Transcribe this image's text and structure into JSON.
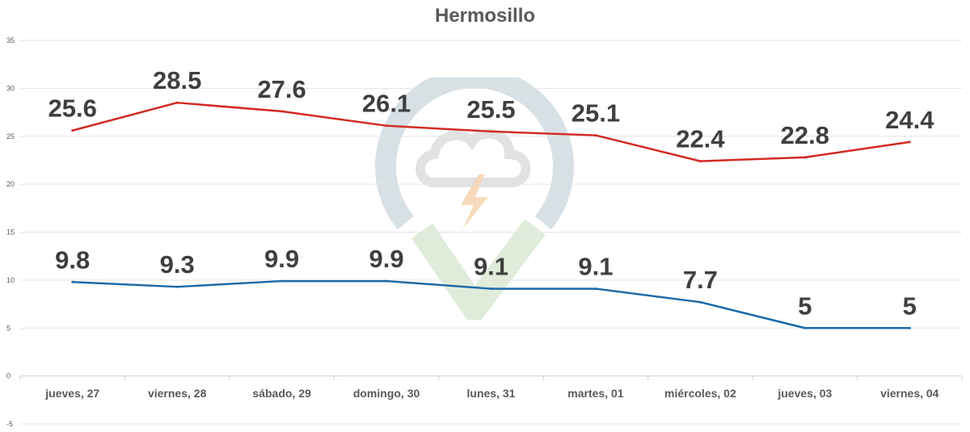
{
  "chart_data": {
    "type": "line",
    "title": "Hermosillo",
    "categories": [
      "jueves, 27",
      "viernes, 28",
      "sábado, 29",
      "domingo, 30",
      "lunes, 31",
      "martes, 01",
      "miércoles, 02",
      "jueves, 03",
      "viernes, 04"
    ],
    "series": [
      {
        "values": [
          25.6,
          28.5,
          27.6,
          26.1,
          25.5,
          25.1,
          22.4,
          22.8,
          24.4
        ],
        "color": "#d42a22"
      },
      {
        "values": [
          9.8,
          9.3,
          9.9,
          9.9,
          9.1,
          9.1,
          7.7,
          5,
          5
        ],
        "color": "#1c6aa8"
      }
    ],
    "yticks": [
      -5,
      0,
      5,
      10,
      15,
      20,
      25,
      30,
      35
    ],
    "ylim": [
      -5,
      35
    ],
    "grid": true,
    "watermark": "cloud-lightning-check-logo"
  }
}
